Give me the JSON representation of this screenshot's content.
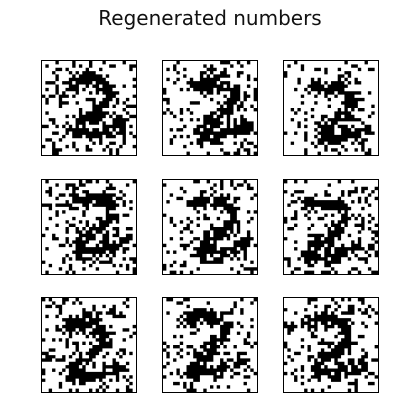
{
  "title": "Regenerated numbers",
  "grid": {
    "rows": 3,
    "cols": 3,
    "panel_count": 9,
    "pixel_resolution": 28
  },
  "colors": {
    "ink": "#000000",
    "paper": "#ffffff"
  },
  "panels": [
    {
      "kind": "binary-digit-image"
    },
    {
      "kind": "binary-digit-image"
    },
    {
      "kind": "binary-digit-image"
    },
    {
      "kind": "binary-digit-image"
    },
    {
      "kind": "binary-digit-image"
    },
    {
      "kind": "binary-digit-image"
    },
    {
      "kind": "binary-digit-image"
    },
    {
      "kind": "binary-digit-image"
    },
    {
      "kind": "binary-digit-image"
    }
  ]
}
